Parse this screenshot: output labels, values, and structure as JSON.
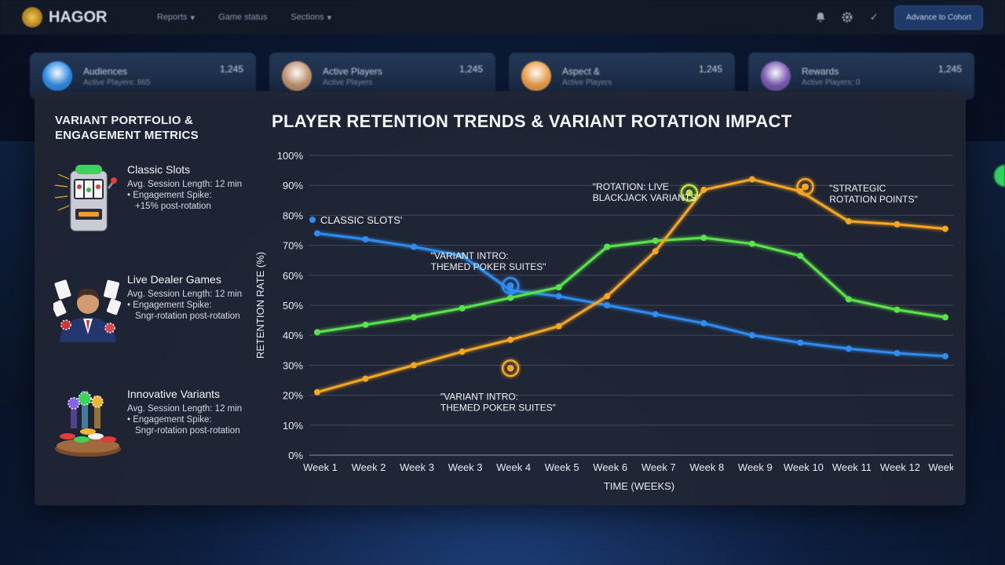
{
  "app": {
    "logo_text": "HAGOR",
    "nav": [
      {
        "label": "Reports",
        "has_dropdown": true
      },
      {
        "label": "Game status",
        "has_dropdown": false
      },
      {
        "label": "Sections",
        "has_dropdown": true
      }
    ],
    "top_icons": [
      "bell-icon",
      "gear-icon",
      "check-icon"
    ],
    "action_button": "Advance to Cohort"
  },
  "kpi_cards": [
    {
      "name": "Audiences",
      "subtitle": "Active Players: 865",
      "value": "1,245",
      "avatar_color": "#2f8fe8"
    },
    {
      "name": "Active Players",
      "subtitle": "Active Players",
      "value": "1,245",
      "avatar_color": "#c79572"
    },
    {
      "name": "Aspect &",
      "subtitle": "Active Players",
      "value": "1,245",
      "avatar_color": "#f0a34a"
    },
    {
      "name": "Rewards",
      "subtitle": "Active Players: 0",
      "value": "1,245",
      "avatar_color": "#7d5db5"
    }
  ],
  "portfolio": {
    "title": "VARIANT PORTFOLIO & ENGAGEMENT METRICS",
    "variants": [
      {
        "name": "Classic Slots",
        "session": "Avg. Session Length: 12 min",
        "spike_label": "• Engagement Spike:",
        "spike_value": "+15% post-rotation",
        "icon": "slot-machine-icon"
      },
      {
        "name": "Live Dealer Games",
        "session": "Avg. Session Length: 12 min",
        "spike_label": "• Engagement Spike:",
        "spike_value": "Sngr-rotation post-rotation",
        "icon": "dealer-icon"
      },
      {
        "name": "Innovative Variants",
        "session": "Avg. Session Length: 12 min",
        "spike_label": "• Engagement Spike:",
        "spike_value": "Sngr-rotation post-rotation",
        "icon": "poker-chips-icon"
      }
    ]
  },
  "chart_data": {
    "type": "line",
    "title": "PLAYER RETENTION TRENDS & VARIANT ROTATION IMPACT",
    "xlabel": "TIME (WEEKS)",
    "ylabel": "RETENTION RATE (%)",
    "categories": [
      "Week 1",
      "Week 2",
      "Week 3",
      "Week 3",
      "Week 4",
      "Week 5",
      "Week 6",
      "Week 7",
      "Week 8",
      "Week 9",
      "Week 10",
      "Week 11",
      "Week 12",
      "Week 12"
    ],
    "ylim": [
      0,
      100
    ],
    "yticks": [
      "0%",
      "10%",
      "20%",
      "30%",
      "40%",
      "50%",
      "60%",
      "70%",
      "80%",
      "90%",
      "100%"
    ],
    "grid": true,
    "legend_label": "CLASSIC SLOTS'",
    "legend_position": "top-left",
    "series": [
      {
        "color": "#2f8cf0",
        "values": [
          74,
          72,
          69.5,
          66.5,
          55,
          53,
          50,
          47,
          44,
          40,
          37.5,
          35.5,
          34,
          33
        ]
      },
      {
        "color": "#58e44a",
        "values": [
          41,
          43.5,
          46,
          49,
          52.5,
          56,
          69.5,
          71.5,
          72.5,
          70.5,
          66.5,
          52,
          48.5,
          46
        ]
      },
      {
        "color": "#f5a623",
        "values": [
          21,
          25.5,
          30,
          34.5,
          38.5,
          43,
          53,
          68,
          88.5,
          92,
          88,
          78,
          77,
          75.5
        ]
      }
    ],
    "markers": [
      {
        "x_index": 4,
        "y": 56.5,
        "color": "#2f8cf0"
      },
      {
        "x_index": 4,
        "y": 29,
        "color": "#f5a623"
      },
      {
        "x_index": 7.7,
        "y": 87.5,
        "color": "#b8e03a"
      },
      {
        "x_index": 10.1,
        "y": 89.5,
        "color": "#f5a623"
      }
    ],
    "annotations": [
      {
        "lines": [
          "\"VARIANT INTRO:",
          "THEMED POKER SUITES\""
        ],
        "x_index": 2.35,
        "y": 65.5
      },
      {
        "lines": [
          "\"VARIANT INTRO:",
          "THEMED POKER SUITES\""
        ],
        "x_index": 2.55,
        "y": 18.5
      },
      {
        "lines": [
          "\"ROTATION: LIVE",
          "BLACKJACK VARIANTS\""
        ],
        "x_index": 5.7,
        "y": 88.5
      },
      {
        "lines": [
          "\"STRATEGIC",
          "ROTATION POINTS\""
        ],
        "x_index": 10.6,
        "y": 88
      }
    ]
  }
}
